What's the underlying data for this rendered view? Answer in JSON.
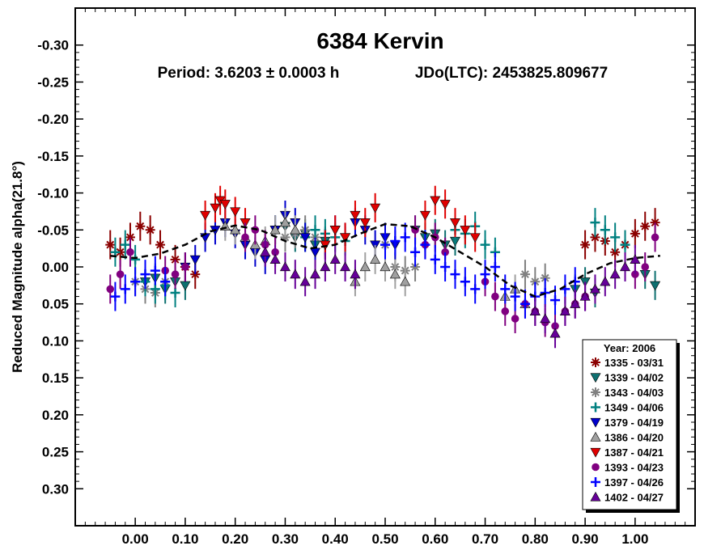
{
  "chart_data": {
    "type": "scatter",
    "title": "6384 Kervin",
    "subtitle_period": "Period: 3.6203 ± 0.0003 h",
    "subtitle_jdo": "JDo(LTC): 2453825.809677",
    "xlabel": "",
    "ylabel": "Reduced Magnitude alpha(21.8°)",
    "xlim": [
      -0.12,
      1.12
    ],
    "ylim": [
      0.35,
      -0.35
    ],
    "y_inverted": true,
    "x_ticks": [
      "0.00",
      "0.10",
      "0.20",
      "0.30",
      "0.40",
      "0.50",
      "0.60",
      "0.70",
      "0.80",
      "0.90",
      "1.00"
    ],
    "x_tick_values": [
      0,
      0.1,
      0.2,
      0.3,
      0.4,
      0.5,
      0.6,
      0.7,
      0.8,
      0.9,
      1.0
    ],
    "y_ticks": [
      "-0.30",
      "-0.25",
      "-0.20",
      "-0.15",
      "-0.10",
      "-0.05",
      "0.00",
      "0.05",
      "0.10",
      "0.15",
      "0.20",
      "0.25",
      "0.30"
    ],
    "y_tick_values": [
      -0.3,
      -0.25,
      -0.2,
      -0.15,
      -0.1,
      -0.05,
      0,
      0.05,
      0.1,
      0.15,
      0.2,
      0.25,
      0.3
    ],
    "grid": false,
    "legend_position": "bottom-right",
    "legend_title": "Year: 2006",
    "fit_curve": {
      "style": "dashed",
      "color": "#000000",
      "x": [
        -0.05,
        0.0,
        0.05,
        0.1,
        0.15,
        0.2,
        0.25,
        0.3,
        0.35,
        0.4,
        0.45,
        0.5,
        0.55,
        0.6,
        0.65,
        0.7,
        0.75,
        0.8,
        0.85,
        0.9,
        0.95,
        1.0,
        1.05
      ],
      "y": [
        -0.015,
        -0.012,
        -0.018,
        -0.03,
        -0.048,
        -0.056,
        -0.05,
        -0.035,
        -0.025,
        -0.03,
        -0.045,
        -0.058,
        -0.055,
        -0.04,
        -0.02,
        0.0,
        0.025,
        0.04,
        0.03,
        0.01,
        -0.005,
        -0.012,
        -0.015
      ]
    },
    "series": [
      {
        "name": "1335 - 03/31",
        "color": "#8b0000",
        "marker": "asterisk",
        "x": [
          -0.05,
          -0.03,
          -0.01,
          0.01,
          0.03,
          0.05,
          0.08,
          0.1,
          0.12,
          0.9,
          0.92,
          0.94,
          0.96,
          0.98,
          1.0,
          1.02,
          1.04
        ],
        "y": [
          -0.03,
          -0.02,
          -0.04,
          -0.055,
          -0.05,
          -0.03,
          -0.01,
          0.0,
          0.01,
          -0.03,
          -0.04,
          -0.035,
          -0.02,
          -0.03,
          -0.045,
          -0.055,
          -0.06
        ]
      },
      {
        "name": "1339 - 04/02",
        "color": "#0e7070",
        "marker": "tri-down",
        "x": [
          0.02,
          0.04,
          0.06,
          0.08,
          0.1,
          0.28,
          0.3,
          0.32,
          0.34,
          0.36,
          0.38,
          0.56,
          0.58,
          0.6,
          0.62,
          0.64,
          0.88,
          0.9,
          0.92,
          1.02,
          1.04
        ],
        "y": [
          0.02,
          0.015,
          0.03,
          0.02,
          0.025,
          -0.05,
          -0.055,
          -0.04,
          -0.045,
          -0.03,
          -0.035,
          -0.05,
          -0.04,
          -0.045,
          -0.03,
          -0.035,
          0.03,
          0.02,
          0.035,
          0.01,
          0.025
        ]
      },
      {
        "name": "1343 - 04/03",
        "color": "#808080",
        "marker": "asterisk",
        "x": [
          0.0,
          0.02,
          0.04,
          0.06,
          0.3,
          0.32,
          0.34,
          0.36,
          0.5,
          0.52,
          0.54,
          0.56,
          0.78,
          0.8,
          0.82
        ],
        "y": [
          0.02,
          0.03,
          0.035,
          0.02,
          -0.04,
          -0.045,
          -0.05,
          -0.04,
          -0.03,
          0.0,
          0.005,
          0.0,
          0.01,
          0.02,
          0.015
        ]
      },
      {
        "name": "1349 - 04/06",
        "color": "#008080",
        "marker": "plus",
        "x": [
          -0.04,
          -0.02,
          0.0,
          0.02,
          0.04,
          0.06,
          0.08,
          0.34,
          0.36,
          0.38,
          0.4,
          0.42,
          0.64,
          0.66,
          0.68,
          0.7,
          0.72,
          0.92,
          0.94,
          0.96,
          0.98
        ],
        "y": [
          -0.02,
          -0.03,
          -0.01,
          0.02,
          0.03,
          0.025,
          0.035,
          -0.04,
          -0.05,
          -0.045,
          -0.04,
          -0.035,
          -0.05,
          -0.045,
          -0.055,
          -0.03,
          -0.02,
          -0.06,
          -0.05,
          -0.04,
          -0.03
        ]
      },
      {
        "name": "1379 - 04/19",
        "color": "#0000cc",
        "marker": "tri-down",
        "x": [
          0.1,
          0.12,
          0.14,
          0.16,
          0.18,
          0.2,
          0.22,
          0.24,
          0.26,
          0.28,
          0.3,
          0.32,
          0.34,
          0.36,
          0.38,
          0.4,
          0.42,
          0.44,
          0.46,
          0.48,
          0.5,
          0.52
        ],
        "y": [
          0.0,
          -0.01,
          -0.04,
          -0.05,
          -0.06,
          -0.045,
          -0.03,
          -0.02,
          -0.01,
          -0.05,
          -0.07,
          -0.06,
          -0.04,
          -0.02,
          -0.03,
          -0.05,
          -0.04,
          -0.06,
          -0.05,
          -0.03,
          -0.04,
          -0.03
        ]
      },
      {
        "name": "1386 - 04/20",
        "color": "#a0a0a0",
        "marker": "tri-up",
        "x": [
          0.18,
          0.2,
          0.22,
          0.24,
          0.26,
          0.28,
          0.3,
          0.32,
          0.44,
          0.46,
          0.48,
          0.5,
          0.52,
          0.54,
          0.74,
          0.76,
          0.78,
          0.8
        ],
        "y": [
          -0.055,
          -0.05,
          -0.04,
          -0.03,
          -0.035,
          -0.05,
          -0.06,
          -0.05,
          0.02,
          0.0,
          -0.01,
          0.0,
          0.01,
          0.02,
          0.04,
          0.03,
          0.05,
          0.06
        ]
      },
      {
        "name": "1387 - 04/21",
        "color": "#e00000",
        "marker": "tri-down",
        "x": [
          0.14,
          0.16,
          0.17,
          0.18,
          0.2,
          0.22,
          0.38,
          0.4,
          0.42,
          0.44,
          0.46,
          0.48,
          0.58,
          0.6,
          0.62,
          0.64,
          0.66,
          0.68
        ],
        "y": [
          -0.07,
          -0.08,
          -0.09,
          -0.085,
          -0.075,
          -0.06,
          -0.03,
          -0.05,
          -0.04,
          -0.07,
          -0.06,
          -0.08,
          -0.07,
          -0.09,
          -0.085,
          -0.06,
          -0.05,
          -0.04
        ]
      },
      {
        "name": "1393 - 04/23",
        "color": "#800080",
        "marker": "circle",
        "x": [
          -0.05,
          -0.03,
          -0.01,
          0.06,
          0.08,
          0.1,
          0.22,
          0.24,
          0.26,
          0.28,
          0.56,
          0.58,
          0.6,
          0.62,
          0.7,
          0.72,
          0.74,
          0.76,
          0.78,
          0.8,
          0.82,
          0.84,
          0.86,
          0.88,
          0.9,
          1.0,
          1.02,
          1.04
        ],
        "y": [
          0.03,
          0.01,
          -0.02,
          0.005,
          0.01,
          0.0,
          -0.04,
          -0.05,
          -0.03,
          -0.02,
          -0.05,
          -0.03,
          -0.04,
          -0.02,
          0.02,
          0.04,
          0.06,
          0.07,
          0.05,
          0.06,
          0.075,
          0.08,
          0.06,
          0.05,
          0.04,
          0.01,
          0.0,
          -0.04
        ]
      },
      {
        "name": "1397 - 04/26",
        "color": "#0000ff",
        "marker": "plus",
        "x": [
          -0.04,
          -0.02,
          0.0,
          0.02,
          0.04,
          0.06,
          0.5,
          0.52,
          0.54,
          0.56,
          0.58,
          0.6,
          0.62,
          0.64,
          0.66,
          0.68,
          0.7,
          0.72,
          0.74,
          0.76,
          0.78,
          0.8,
          0.82,
          0.84,
          0.86,
          0.88
        ],
        "y": [
          0.04,
          0.03,
          0.02,
          0.01,
          0.005,
          0.02,
          -0.03,
          -0.035,
          -0.04,
          -0.02,
          -0.03,
          -0.01,
          0.0,
          0.01,
          0.02,
          0.03,
          0.01,
          0.0,
          0.03,
          0.04,
          0.05,
          0.04,
          0.035,
          0.045,
          0.03,
          0.02
        ]
      },
      {
        "name": "1402 - 04/27",
        "color": "#660099",
        "marker": "tri-up",
        "x": [
          0.26,
          0.28,
          0.3,
          0.32,
          0.34,
          0.36,
          0.38,
          0.4,
          0.42,
          0.44,
          0.8,
          0.82,
          0.84,
          0.86,
          0.88,
          0.9,
          0.92,
          0.94,
          0.96,
          0.98,
          1.0
        ],
        "y": [
          -0.02,
          -0.01,
          0.0,
          0.01,
          0.02,
          0.01,
          0.0,
          -0.01,
          0.0,
          0.01,
          0.06,
          0.07,
          0.09,
          0.06,
          0.05,
          0.04,
          0.03,
          0.02,
          0.01,
          0.0,
          -0.01
        ]
      }
    ]
  }
}
